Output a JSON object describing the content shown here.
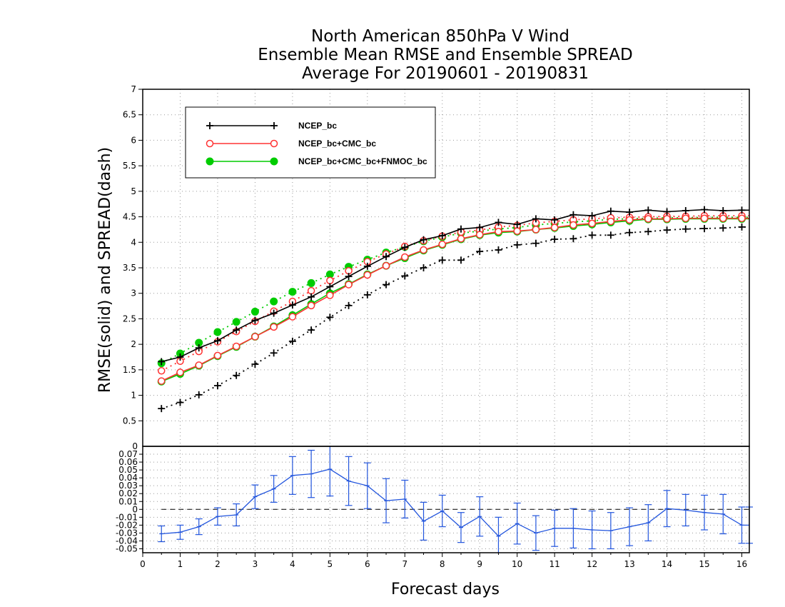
{
  "chart_data": [
    {
      "type": "line",
      "title": [
        "North American 850hPa V Wind",
        "Ensemble Mean RMSE and Ensemble SPREAD",
        "Average For 20190601 - 20190831"
      ],
      "ylabel": "RMSE(solid) and SPREAD(dash)",
      "xlim": [
        0,
        16.2
      ],
      "ylim": [
        0,
        7
      ],
      "yticks": [
        0.5,
        1,
        1.5,
        2,
        2.5,
        3,
        3.5,
        4,
        4.5,
        5,
        5.5,
        6,
        6.5,
        7
      ],
      "grid": true,
      "legend_position": "top-left",
      "x": [
        0.5,
        1,
        1.5,
        2,
        2.5,
        3,
        3.5,
        4,
        4.5,
        5,
        5.5,
        6,
        6.5,
        7,
        7.5,
        8,
        8.5,
        9,
        9.5,
        10,
        10.5,
        11,
        11.5,
        12,
        12.5,
        13,
        13.5,
        14,
        14.5,
        15,
        15.5,
        16,
        16.2
      ],
      "series": [
        {
          "name": "NCEP_bc",
          "color": "#000000",
          "marker": "plus",
          "rmse": [
            1.66,
            1.75,
            1.93,
            2.07,
            2.28,
            2.47,
            2.61,
            2.77,
            2.93,
            3.13,
            3.33,
            3.53,
            3.72,
            3.9,
            4.05,
            4.13,
            4.26,
            4.29,
            4.39,
            4.35,
            4.46,
            4.44,
            4.54,
            4.52,
            4.61,
            4.59,
            4.63,
            4.6,
            4.62,
            4.64,
            4.62,
            4.63,
            4.63
          ],
          "spread": [
            0.74,
            0.86,
            1.01,
            1.19,
            1.39,
            1.61,
            1.83,
            2.06,
            2.28,
            2.53,
            2.76,
            2.97,
            3.17,
            3.34,
            3.5,
            3.65,
            3.65,
            3.82,
            3.85,
            3.95,
            3.98,
            4.06,
            4.07,
            4.14,
            4.14,
            4.19,
            4.21,
            4.24,
            4.26,
            4.27,
            4.28,
            4.3,
            4.3
          ]
        },
        {
          "name": "NCEP_bc+CMC_bc",
          "color": "#ff3333",
          "marker": "open-circle",
          "rmse": [
            1.28,
            1.45,
            1.59,
            1.78,
            1.96,
            2.15,
            2.34,
            2.54,
            2.76,
            2.96,
            3.17,
            3.36,
            3.54,
            3.71,
            3.85,
            3.96,
            4.07,
            4.15,
            4.21,
            4.22,
            4.25,
            4.29,
            4.34,
            4.37,
            4.41,
            4.44,
            4.46,
            4.46,
            4.47,
            4.47,
            4.47,
            4.47,
            4.47
          ],
          "spread": [
            1.48,
            1.67,
            1.86,
            2.05,
            2.25,
            2.45,
            2.65,
            2.84,
            3.05,
            3.25,
            3.44,
            3.62,
            3.77,
            3.92,
            4.03,
            4.12,
            4.2,
            4.24,
            4.3,
            4.33,
            4.38,
            4.41,
            4.44,
            4.46,
            4.48,
            4.49,
            4.5,
            4.51,
            4.51,
            4.52,
            4.52,
            4.52,
            4.52
          ]
        },
        {
          "name": "NCEP_bc+CMC_bc+FNMOC_bc",
          "color": "#00cc00",
          "marker": "filled-circle",
          "rmse": [
            1.27,
            1.42,
            1.58,
            1.77,
            1.95,
            2.15,
            2.35,
            2.57,
            2.79,
            3.0,
            3.18,
            3.37,
            3.54,
            3.69,
            3.84,
            3.95,
            4.06,
            4.14,
            4.19,
            4.21,
            4.25,
            4.28,
            4.32,
            4.35,
            4.39,
            4.42,
            4.45,
            4.45,
            4.46,
            4.46,
            4.46,
            4.46,
            4.46
          ],
          "spread": [
            1.63,
            1.82,
            2.03,
            2.24,
            2.44,
            2.64,
            2.84,
            3.03,
            3.2,
            3.37,
            3.52,
            3.66,
            3.8,
            3.91,
            4.02,
            4.1,
            4.18,
            4.22,
            4.26,
            4.29,
            4.34,
            4.37,
            4.4,
            4.42,
            4.45,
            4.46,
            4.47,
            4.48,
            4.48,
            4.49,
            4.49,
            4.49,
            4.49
          ]
        }
      ]
    },
    {
      "type": "line",
      "xlabel": "Forecast days",
      "xlim": [
        0,
        16.2
      ],
      "xticks": [
        0,
        1,
        2,
        3,
        4,
        5,
        6,
        7,
        8,
        9,
        10,
        11,
        12,
        13,
        14,
        15,
        16
      ],
      "ylim": [
        -0.055,
        0.08
      ],
      "yticks": [
        -0.05,
        -0.04,
        -0.03,
        -0.02,
        -0.01,
        0,
        0.01,
        0.02,
        0.03,
        0.04,
        0.05,
        0.06,
        0.07
      ],
      "top_label": "0",
      "grid": true,
      "color": "#2255dd",
      "x": [
        0.5,
        1,
        1.5,
        2,
        2.5,
        3,
        3.5,
        4,
        4.5,
        5,
        5.5,
        6,
        6.5,
        7,
        7.5,
        8,
        8.5,
        9,
        9.5,
        10,
        10.5,
        11,
        11.5,
        12,
        12.5,
        13,
        13.5,
        14,
        14.5,
        15,
        15.5,
        16,
        16.2
      ],
      "values": [
        -0.031,
        -0.029,
        -0.022,
        -0.009,
        -0.007,
        0.016,
        0.026,
        0.043,
        0.045,
        0.051,
        0.036,
        0.03,
        0.011,
        0.013,
        -0.015,
        -0.002,
        -0.023,
        -0.009,
        -0.034,
        -0.018,
        -0.03,
        -0.024,
        -0.024,
        -0.026,
        -0.027,
        -0.022,
        -0.017,
        0.001,
        -0.001,
        -0.004,
        -0.006,
        -0.02,
        -0.02
      ],
      "errors": [
        0.01,
        0.009,
        0.01,
        0.011,
        0.014,
        0.015,
        0.017,
        0.024,
        0.03,
        0.034,
        0.031,
        0.029,
        0.028,
        0.024,
        0.024,
        0.02,
        0.019,
        0.025,
        0.024,
        0.026,
        0.022,
        0.023,
        0.025,
        0.024,
        0.023,
        0.024,
        0.023,
        0.023,
        0.02,
        0.022,
        0.025,
        0.023,
        0.023
      ]
    }
  ]
}
